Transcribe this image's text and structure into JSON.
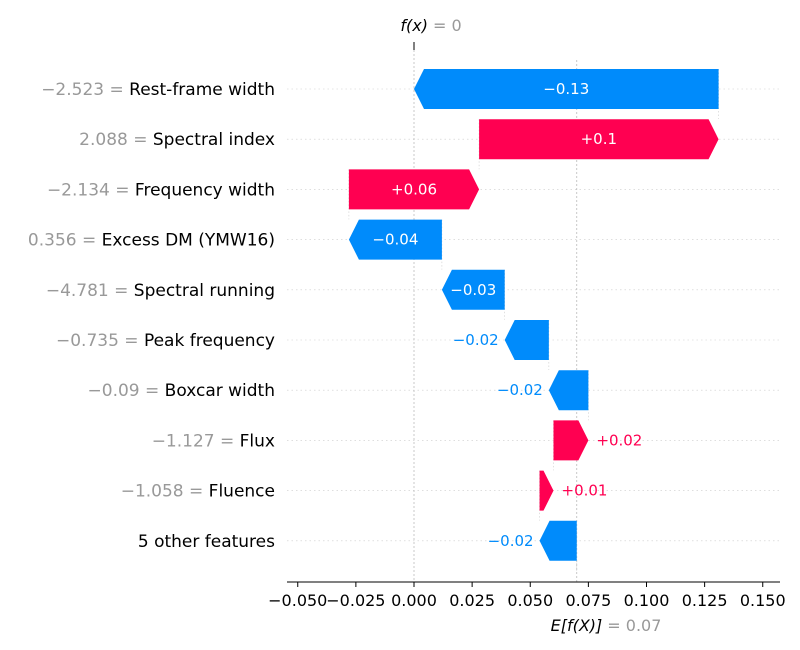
{
  "chart_data": {
    "type": "bar",
    "subtype": "waterfall",
    "top_label": {
      "fx_text": "f(x)",
      "eq_text": "= 0",
      "value": 0
    },
    "bottom_label": {
      "efx_text": "E[f(X)]",
      "eq_text": "= 0.07",
      "value": 0.07
    },
    "xlim": [
      -0.055,
      0.16
    ],
    "x_ticks": [
      -0.05,
      -0.025,
      0.0,
      0.025,
      0.05,
      0.075,
      0.1,
      0.125,
      0.15
    ],
    "x_tick_labels": [
      "−0.050",
      "−0.025",
      "0.000",
      "0.025",
      "0.050",
      "0.075",
      "0.100",
      "0.125",
      "0.150"
    ],
    "features": [
      {
        "value_text": "−2.523 =",
        "name": "Rest-frame width",
        "contribution": -0.13,
        "label": "−0.13",
        "start": 0.131,
        "end": 0.0
      },
      {
        "value_text": "2.088 =",
        "name": "Spectral index",
        "contribution": 0.1,
        "label": "+0.1",
        "start": 0.028,
        "end": 0.131
      },
      {
        "value_text": "−2.134 =",
        "name": "Frequency width",
        "contribution": 0.06,
        "label": "+0.06",
        "start": -0.028,
        "end": 0.028
      },
      {
        "value_text": "0.356 =",
        "name": "Excess DM (YMW16)",
        "contribution": -0.04,
        "label": "−0.04",
        "start": 0.012,
        "end": -0.028
      },
      {
        "value_text": "−4.781 =",
        "name": "Spectral running",
        "contribution": -0.03,
        "label": "−0.03",
        "start": 0.039,
        "end": 0.012
      },
      {
        "value_text": "−0.735 =",
        "name": "Peak frequency",
        "contribution": -0.02,
        "label": "−0.02",
        "start": 0.058,
        "end": 0.039
      },
      {
        "value_text": "−0.09 =",
        "name": "Boxcar width",
        "contribution": -0.02,
        "label": "−0.02",
        "start": 0.075,
        "end": 0.058
      },
      {
        "value_text": "−1.127 =",
        "name": "Flux",
        "contribution": 0.02,
        "label": "+0.02",
        "start": 0.06,
        "end": 0.075
      },
      {
        "value_text": "−1.058 =",
        "name": "Fluence",
        "contribution": 0.01,
        "label": "+0.01",
        "start": 0.054,
        "end": 0.06
      },
      {
        "value_text": "",
        "name": "5 other features",
        "contribution": -0.02,
        "label": "−0.02",
        "start": 0.07,
        "end": 0.054
      }
    ],
    "colors": {
      "positive": "#ff0051",
      "negative": "#008bfb",
      "muted": "#999999",
      "axis": "#000000",
      "grid": "#cccccc"
    },
    "grid": true
  }
}
